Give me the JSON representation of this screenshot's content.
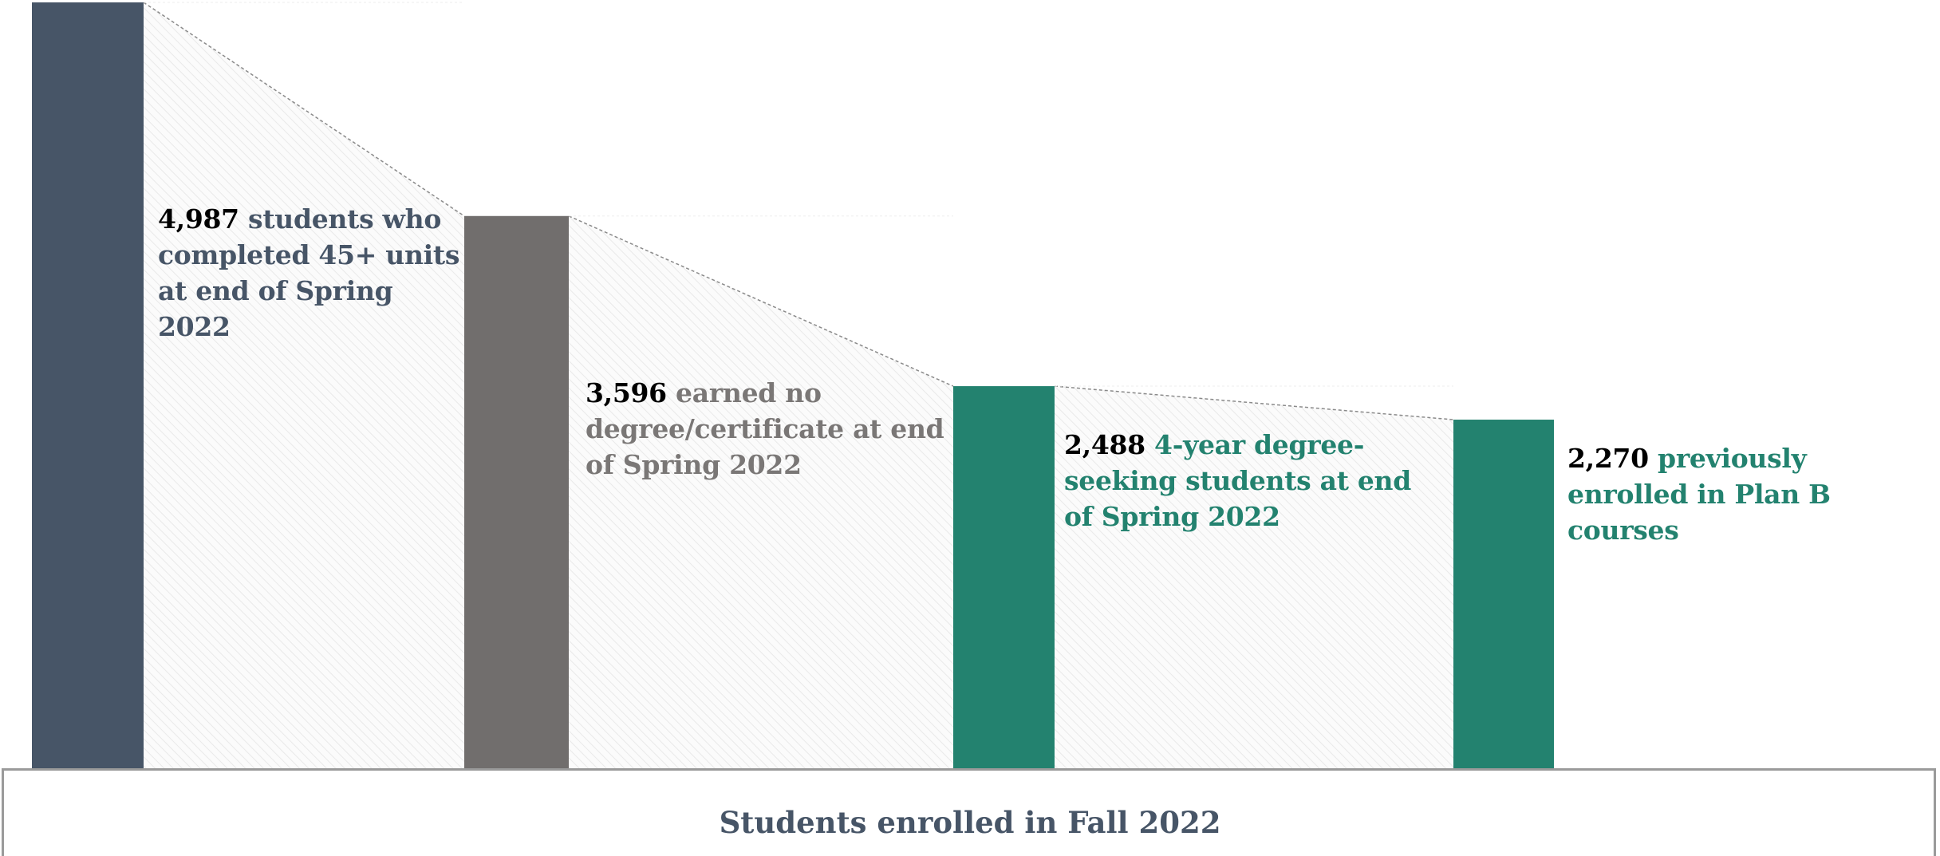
{
  "chart_data": {
    "type": "bar",
    "categories": [
      "students who completed 45+ units at end of Spring 2022",
      "earned no degree/certificate at end of Spring 2022",
      "4-year degree-seeking students at end of Spring 2022",
      "previously enrolled in Plan B courses"
    ],
    "values": [
      4987,
      3596,
      2488,
      2270
    ],
    "value_labels": [
      "4,987",
      "3,596",
      "2,488",
      "2,270"
    ],
    "label_texts": [
      "students who completed 45+ units at end of Spring 2022",
      "earned no degree/certificate at end of Spring 2022",
      "4-year degree-seeking students at end of Spring 2022",
      "previously enrolled in Plan B courses"
    ],
    "colors": [
      "#475567",
      "#716e6d",
      "#23826f",
      "#23826f"
    ],
    "label_colors": [
      "#475567",
      "#7a7776",
      "#23826f",
      "#23826f"
    ],
    "ylim": [
      0,
      4987
    ],
    "grid": false,
    "title": "Students enrolled in Fall 2022"
  }
}
